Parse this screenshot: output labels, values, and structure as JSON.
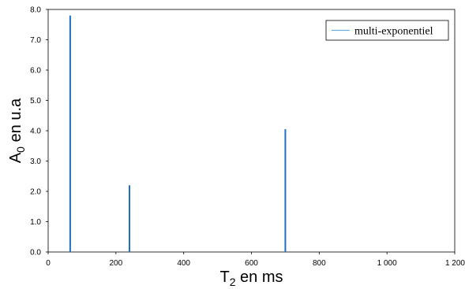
{
  "chart_data": {
    "type": "bar",
    "title": "",
    "xlabel": {
      "main": "T",
      "sub": "2",
      "rest": " en ms"
    },
    "ylabel": {
      "main": "A",
      "sub": "0",
      "rest": " en u.a"
    },
    "xlim": [
      0,
      1200
    ],
    "ylim": [
      0,
      8
    ],
    "xticks": [
      0,
      200,
      400,
      600,
      800,
      1000,
      1200
    ],
    "xtick_labels": [
      "0",
      "200",
      "400",
      "600",
      "800",
      "1 000",
      "1 200"
    ],
    "yticks": [
      0,
      1,
      2,
      3,
      4,
      5,
      6,
      7,
      8
    ],
    "ytick_labels": [
      "0.0",
      "1.0",
      "2.0",
      "3.0",
      "4.0",
      "5.0",
      "6.0",
      "7.0",
      "8.0"
    ],
    "grid": false,
    "legend_position": "top-right",
    "series": [
      {
        "name": "multi-exponentiel",
        "color": "#1f6fc5",
        "legend_color": "#6aaee4",
        "x": [
          65,
          240,
          700
        ],
        "values": [
          7.8,
          2.2,
          4.05
        ]
      }
    ]
  }
}
